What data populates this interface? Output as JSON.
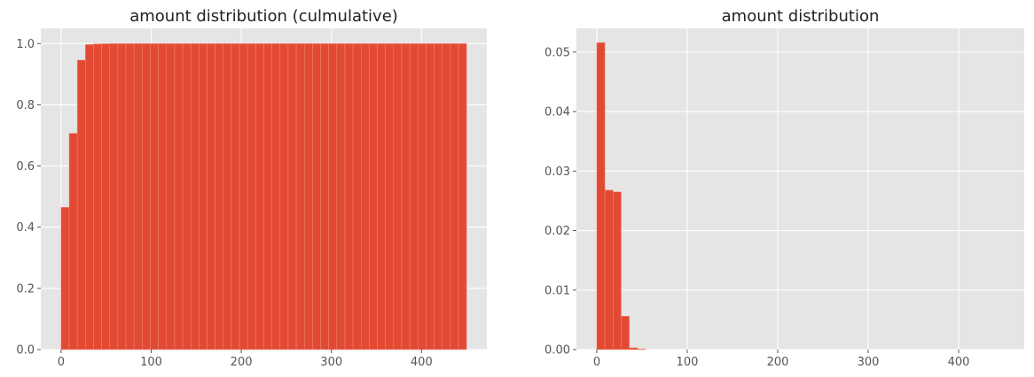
{
  "chart_data": [
    {
      "type": "bar",
      "title": "amount distribution (culmulative)",
      "xlabel": "",
      "ylabel": "",
      "xlim": [
        -22.5,
        472.5
      ],
      "ylim": [
        0,
        1.05
      ],
      "xticks": [
        0,
        100,
        200,
        300,
        400
      ],
      "yticks": [
        0.0,
        0.2,
        0.4,
        0.6,
        0.8,
        1.0
      ],
      "bin_width": 9,
      "bin_start": 0,
      "values": [
        0.465,
        0.707,
        0.946,
        0.997,
        0.999,
        0.9995,
        1.0,
        1.0,
        1.0,
        1.0,
        1.0,
        1.0,
        1.0,
        1.0,
        1.0,
        1.0,
        1.0,
        1.0,
        1.0,
        1.0,
        1.0,
        1.0,
        1.0,
        1.0,
        1.0,
        1.0,
        1.0,
        1.0,
        1.0,
        1.0,
        1.0,
        1.0,
        1.0,
        1.0,
        1.0,
        1.0,
        1.0,
        1.0,
        1.0,
        1.0,
        1.0,
        1.0,
        1.0,
        1.0,
        1.0,
        1.0,
        1.0,
        1.0,
        1.0,
        1.0
      ],
      "grid": true,
      "colors": {
        "bar": "#e24a33",
        "background": "#e5e5e5",
        "grid": "#ffffff"
      }
    },
    {
      "type": "bar",
      "title": "amount distribution",
      "xlabel": "",
      "ylabel": "",
      "xlim": [
        -22.5,
        472.5
      ],
      "ylim": [
        0,
        0.054
      ],
      "xticks": [
        0,
        100,
        200,
        300,
        400
      ],
      "yticks": [
        0.0,
        0.01,
        0.02,
        0.03,
        0.04,
        0.05
      ],
      "ytick_format": 2,
      "bin_width": 9,
      "bin_start": 0,
      "values": [
        0.0516,
        0.0268,
        0.0265,
        0.0056,
        0.0003,
        0.0001,
        0,
        0,
        0,
        0,
        0,
        0,
        0,
        0,
        0,
        0,
        0,
        0,
        0,
        0,
        0,
        0,
        0,
        0,
        0,
        0,
        0,
        0,
        0,
        0,
        0,
        0,
        0,
        0,
        0,
        0,
        0,
        0,
        0,
        0,
        0,
        0,
        0,
        0,
        0,
        0,
        0,
        0,
        0,
        0
      ],
      "grid": true,
      "colors": {
        "bar": "#e24a33",
        "background": "#e5e5e5",
        "grid": "#ffffff"
      }
    }
  ]
}
